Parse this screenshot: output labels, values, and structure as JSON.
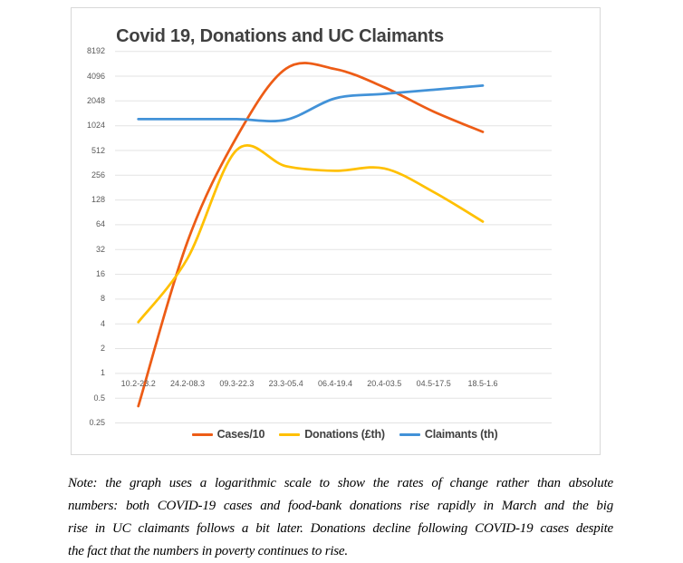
{
  "chart_data": {
    "type": "line",
    "title": "Covid 19, Donations and UC Claimants",
    "x_categories": [
      "10.2-23.2",
      "24.2-08.3",
      "09.3-22.3",
      "23.3-05.4",
      "06.4-19.4",
      "20.4-03.5",
      "04.5-17.5",
      "18.5-1.6"
    ],
    "y_scale": "log2",
    "y_ticks": [
      "8192",
      "4096",
      "2048",
      "1024",
      "512",
      "256",
      "128",
      "64",
      "32",
      "16",
      "8",
      "4",
      "2",
      "1",
      "0.5",
      "0.25"
    ],
    "ylim": [
      0.25,
      8192
    ],
    "grid": "horizontal-only",
    "legend_position": "bottom",
    "smoothed_lines": true,
    "series": [
      {
        "name": "Cases/10",
        "color": "#ED5C16",
        "values": [
          0.4,
          40,
          750,
          5050,
          5000,
          3000,
          1520,
          860
        ]
      },
      {
        "name": "Donations (£th)",
        "color": "#FFC000",
        "values": [
          4.2,
          25,
          520,
          330,
          290,
          310,
          160,
          70
        ]
      },
      {
        "name": "Claimants (th)",
        "color": "#4292D8",
        "values": [
          1230,
          1230,
          1230,
          1210,
          2200,
          2500,
          2800,
          3150
        ]
      }
    ]
  },
  "note": {
    "lines": [
      "Note: the graph uses a logarithmic scale to show the rates of change rather than absolute",
      "numbers: both COVID-19 cases and food-bank donations rise rapidly in March and the big",
      "rise in UC claimants follows a bit later. Donations decline following COVID-19 cases despite",
      "the fact that the numbers in poverty continues to rise."
    ]
  },
  "style": {
    "grid_color": "#E3E3E3",
    "border_color": "#D8D8D8",
    "tick_text_color": "#595959",
    "title_color": "#404040",
    "legend_text_color": "#404040",
    "background": "#FFFFFF",
    "series_stroke_width": 2.75
  }
}
